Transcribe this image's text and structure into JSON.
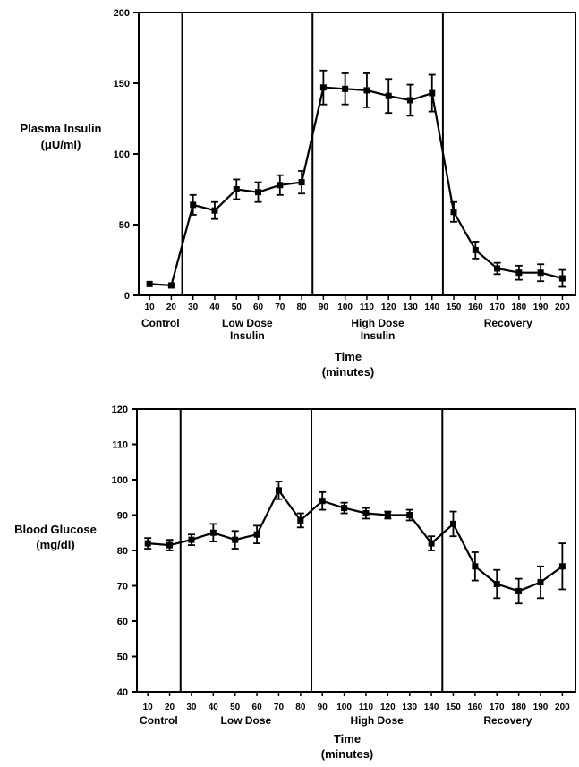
{
  "chart_data": [
    {
      "type": "line",
      "ylabel": [
        "Plasma Insulin",
        "(μU/ml)"
      ],
      "xlabel": [
        "Time",
        "(minutes)"
      ],
      "ylim": [
        0,
        200
      ],
      "yticks": [
        0,
        50,
        100,
        150,
        200
      ],
      "xlim": [
        5,
        206
      ],
      "xticks": [
        10,
        20,
        30,
        40,
        50,
        60,
        70,
        80,
        90,
        100,
        110,
        120,
        130,
        140,
        150,
        160,
        170,
        180,
        190,
        200
      ],
      "phase_boundaries": [
        25,
        85,
        145
      ],
      "phases": [
        {
          "label": [
            "Control"
          ],
          "x": 15
        },
        {
          "label": [
            "Low Dose",
            "Insulin"
          ],
          "x": 55
        },
        {
          "label": [
            "High Dose",
            "Insulin"
          ],
          "x": 115
        },
        {
          "label": [
            "Recovery"
          ],
          "x": 175
        }
      ],
      "series": [
        {
          "x": [
            10,
            20,
            30,
            40,
            50,
            60,
            70,
            80,
            90,
            100,
            110,
            120,
            130,
            140,
            150,
            160,
            170,
            180,
            190,
            200
          ],
          "y": [
            8,
            7,
            64,
            60,
            75,
            73,
            78,
            80,
            147,
            146,
            145,
            141,
            138,
            143,
            59,
            32,
            19,
            16,
            16,
            12
          ],
          "err": [
            0,
            0,
            7,
            6,
            7,
            7,
            7,
            8,
            12,
            11,
            12,
            12,
            11,
            13,
            7,
            6,
            4,
            5,
            6,
            6
          ]
        }
      ]
    },
    {
      "type": "line",
      "ylabel": [
        "Blood Glucose",
        "(mg/dl)"
      ],
      "xlabel": [
        "Time",
        "(minutes)"
      ],
      "ylim": [
        40,
        120
      ],
      "yticks": [
        40,
        50,
        60,
        70,
        80,
        90,
        100,
        110,
        120
      ],
      "xlim": [
        5,
        206
      ],
      "xticks": [
        10,
        20,
        30,
        40,
        50,
        60,
        70,
        80,
        90,
        100,
        110,
        120,
        130,
        140,
        150,
        160,
        170,
        180,
        190,
        200
      ],
      "phase_boundaries": [
        25,
        85,
        145
      ],
      "phases": [
        {
          "label": [
            "Control"
          ],
          "x": 15
        },
        {
          "label": [
            "Low Dose"
          ],
          "x": 55
        },
        {
          "label": [
            "High Dose"
          ],
          "x": 115
        },
        {
          "label": [
            "Recovery"
          ],
          "x": 175
        }
      ],
      "series": [
        {
          "x": [
            10,
            20,
            30,
            40,
            50,
            60,
            70,
            80,
            90,
            100,
            110,
            120,
            130,
            140,
            150,
            160,
            170,
            180,
            190,
            200
          ],
          "y": [
            82,
            81.5,
            83,
            85,
            83,
            84.5,
            97,
            88.5,
            94,
            92,
            90.5,
            90,
            90,
            82,
            87.5,
            75.5,
            70.5,
            68.5,
            71,
            75.5
          ],
          "err": [
            1.5,
            1.5,
            1.5,
            2.5,
            2.5,
            2.5,
            2.5,
            2,
            2.5,
            1.5,
            1.5,
            1,
            1.5,
            2,
            3.5,
            4,
            4,
            3.5,
            4.5,
            6.5
          ]
        }
      ]
    }
  ]
}
